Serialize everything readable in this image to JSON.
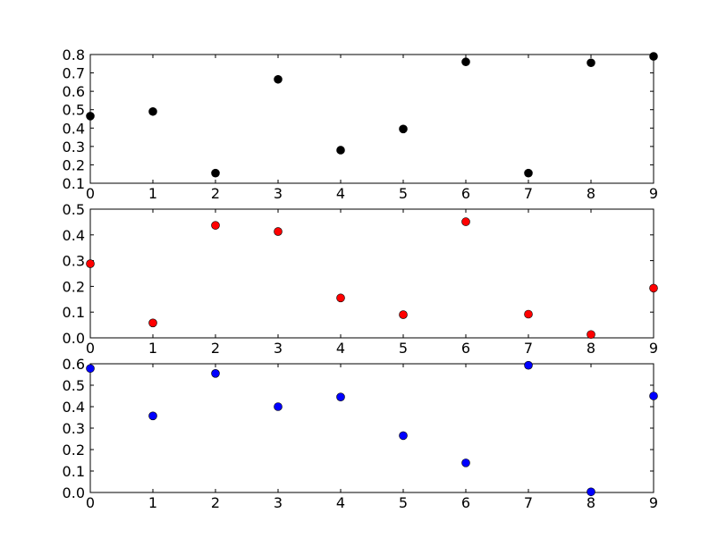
{
  "chart_data": [
    {
      "type": "scatter",
      "title": "",
      "xlabel": "",
      "ylabel": "",
      "xlim": [
        0,
        9
      ],
      "ylim": [
        0.1,
        0.8
      ],
      "xticks": [
        "0",
        "1",
        "2",
        "3",
        "4",
        "5",
        "6",
        "7",
        "8",
        "9"
      ],
      "yticks": [
        "0.1",
        "0.2",
        "0.3",
        "0.4",
        "0.5",
        "0.6",
        "0.7",
        "0.8"
      ],
      "grid": false,
      "color": "#000000",
      "x": [
        0,
        1,
        2,
        3,
        4,
        5,
        6,
        7,
        8,
        9
      ],
      "y": [
        0.465,
        0.49,
        0.155,
        0.665,
        0.28,
        0.395,
        0.76,
        0.155,
        0.755,
        0.79
      ]
    },
    {
      "type": "scatter",
      "title": "",
      "xlabel": "",
      "ylabel": "",
      "xlim": [
        0,
        9
      ],
      "ylim": [
        0.0,
        0.5
      ],
      "xticks": [
        "0",
        "1",
        "2",
        "3",
        "4",
        "5",
        "6",
        "7",
        "8",
        "9"
      ],
      "yticks": [
        "0.0",
        "0.1",
        "0.2",
        "0.3",
        "0.4",
        "0.5"
      ],
      "grid": false,
      "color": "#ff0000",
      "x": [
        0,
        1,
        2,
        3,
        4,
        5,
        6,
        7,
        8,
        9
      ],
      "y": [
        0.288,
        0.058,
        0.437,
        0.413,
        0.155,
        0.09,
        0.451,
        0.092,
        0.013,
        0.193
      ]
    },
    {
      "type": "scatter",
      "title": "",
      "xlabel": "",
      "ylabel": "",
      "xlim": [
        0,
        9
      ],
      "ylim": [
        0.0,
        0.6
      ],
      "xticks": [
        "0",
        "1",
        "2",
        "3",
        "4",
        "5",
        "6",
        "7",
        "8",
        "9"
      ],
      "yticks": [
        "0.0",
        "0.1",
        "0.2",
        "0.3",
        "0.4",
        "0.5",
        "0.6"
      ],
      "grid": false,
      "color": "#0000ff",
      "x": [
        0,
        1,
        2,
        3,
        4,
        5,
        6,
        7,
        8,
        9
      ],
      "y": [
        0.578,
        0.357,
        0.555,
        0.4,
        0.445,
        0.265,
        0.138,
        0.593,
        0.003,
        0.45
      ]
    }
  ]
}
